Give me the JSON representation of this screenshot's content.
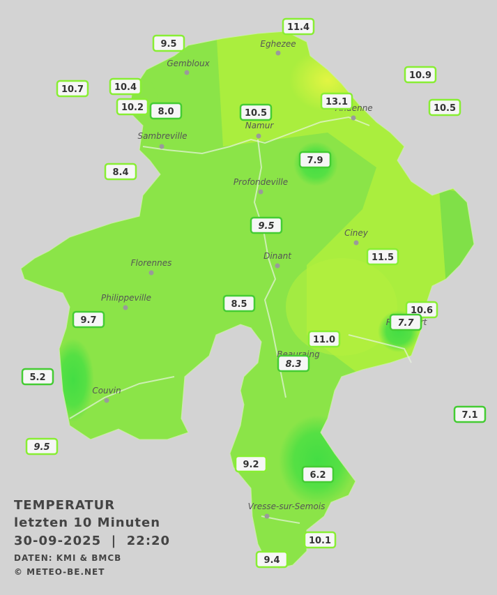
{
  "title": {
    "lines": [
      "TEMPERATUR",
      "letzten 10 Minuten",
      "30-09-2025  |  22:20"
    ],
    "credits": [
      "DATEN: KMI & BMCB",
      "© METEO-BE.NET"
    ]
  },
  "cities": [
    "Eghezee",
    "Gembloux",
    "Andenne",
    "Namur",
    "Sambreville",
    "Profondeville",
    "Ciney",
    "Dinant",
    "Florennes",
    "Philippeville",
    "Rochefort",
    "Beauraing",
    "Couvin",
    "Vresse-sur-Semois"
  ],
  "stations": [
    "11.4",
    "9.5",
    "10.9",
    "10.7",
    "10.4",
    "13.1",
    "10.2",
    "8.0",
    "10.5",
    "10.5",
    "7.9",
    "8.4",
    "9.5",
    "11.5",
    "8.5",
    "10.6",
    "9.7",
    "7.7",
    "11.0",
    "8.3",
    "5.2",
    "7.1",
    "9.5",
    "9.2",
    "6.2",
    "10.1",
    "9.4"
  ]
}
